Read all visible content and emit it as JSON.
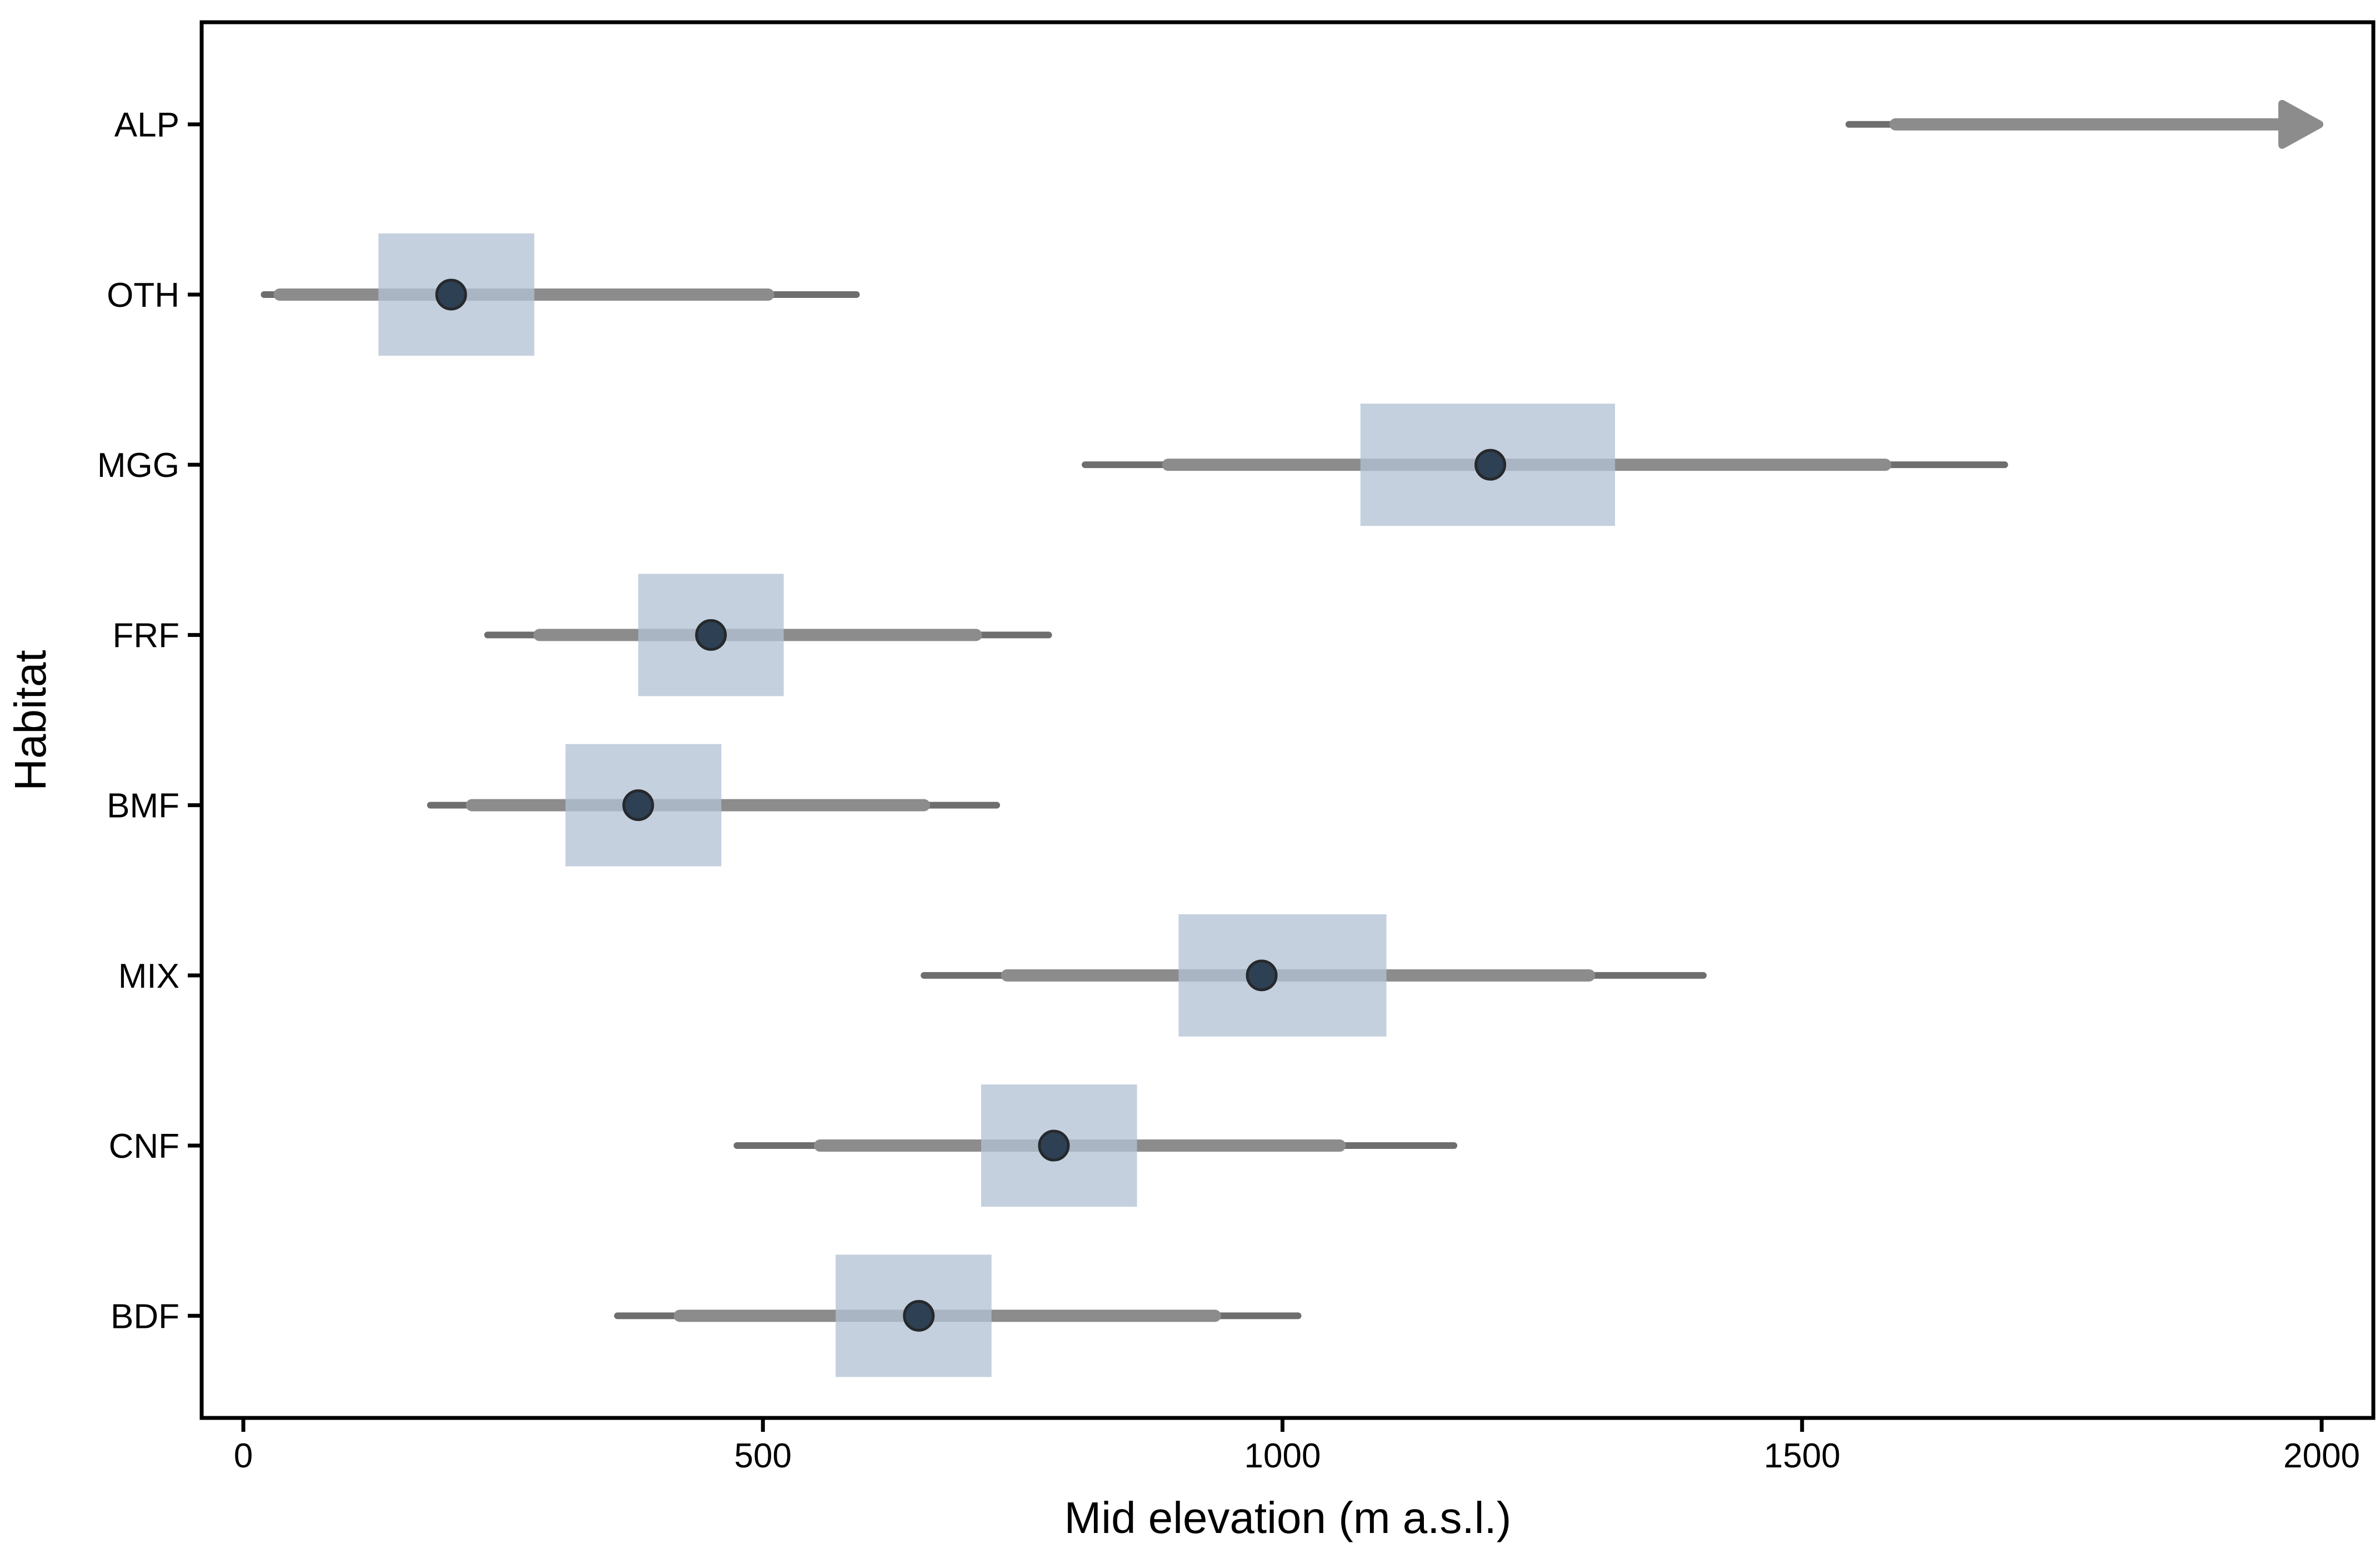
{
  "chart_data": {
    "type": "pointrange",
    "orientation": "horizontal",
    "title": "",
    "xlabel": "Mid elevation (m a.s.l.)",
    "ylabel": "Habitat",
    "x_ticks": [
      0,
      500,
      1000,
      1500,
      2000
    ],
    "x_domain": [
      -42,
      2050
    ],
    "grid": false,
    "legend": null,
    "categories_top_to_bottom": [
      "ALP",
      "OTH",
      "MGG",
      "FRF",
      "BMF",
      "MIX",
      "CNF",
      "BDF"
    ],
    "rows": [
      {
        "label": "ALP",
        "outer": [
          1545,
          1590
        ],
        "inner": null,
        "box": null,
        "point": null,
        "arrow": {
          "from": 1590,
          "to": 2000,
          "note": "interval extends beyond axis limit"
        }
      },
      {
        "label": "OTH",
        "outer": [
          20,
          590
        ],
        "inner": [
          35,
          505
        ],
        "box": [
          130,
          280
        ],
        "point": 200,
        "arrow": null
      },
      {
        "label": "MGG",
        "outer": [
          810,
          1695
        ],
        "inner": [
          890,
          1580
        ],
        "box": [
          1075,
          1320
        ],
        "point": 1200,
        "arrow": null
      },
      {
        "label": "FRF",
        "outer": [
          235,
          775
        ],
        "inner": [
          285,
          705
        ],
        "box": [
          380,
          520
        ],
        "point": 450,
        "arrow": null
      },
      {
        "label": "BMF",
        "outer": [
          180,
          725
        ],
        "inner": [
          220,
          655
        ],
        "box": [
          310,
          460
        ],
        "point": 380,
        "arrow": null
      },
      {
        "label": "MIX",
        "outer": [
          655,
          1405
        ],
        "inner": [
          735,
          1295
        ],
        "box": [
          900,
          1100
        ],
        "point": 980,
        "arrow": null
      },
      {
        "label": "CNF",
        "outer": [
          475,
          1165
        ],
        "inner": [
          555,
          1055
        ],
        "box": [
          710,
          860
        ],
        "point": 780,
        "arrow": null
      },
      {
        "label": "BDF",
        "outer": [
          360,
          1015
        ],
        "inner": [
          420,
          935
        ],
        "box": [
          570,
          720
        ],
        "point": 650,
        "arrow": null
      }
    ],
    "colors": {
      "background": "#ffffff",
      "axis": "#000000",
      "outer_line": "#6e6e6e",
      "inner_line": "#8c8c8c",
      "arrow": "#8c8c8c",
      "box_fill": "rgba(178,194,212,0.77)",
      "point_fill": "#2e4053",
      "point_stroke": "#26292c"
    }
  }
}
